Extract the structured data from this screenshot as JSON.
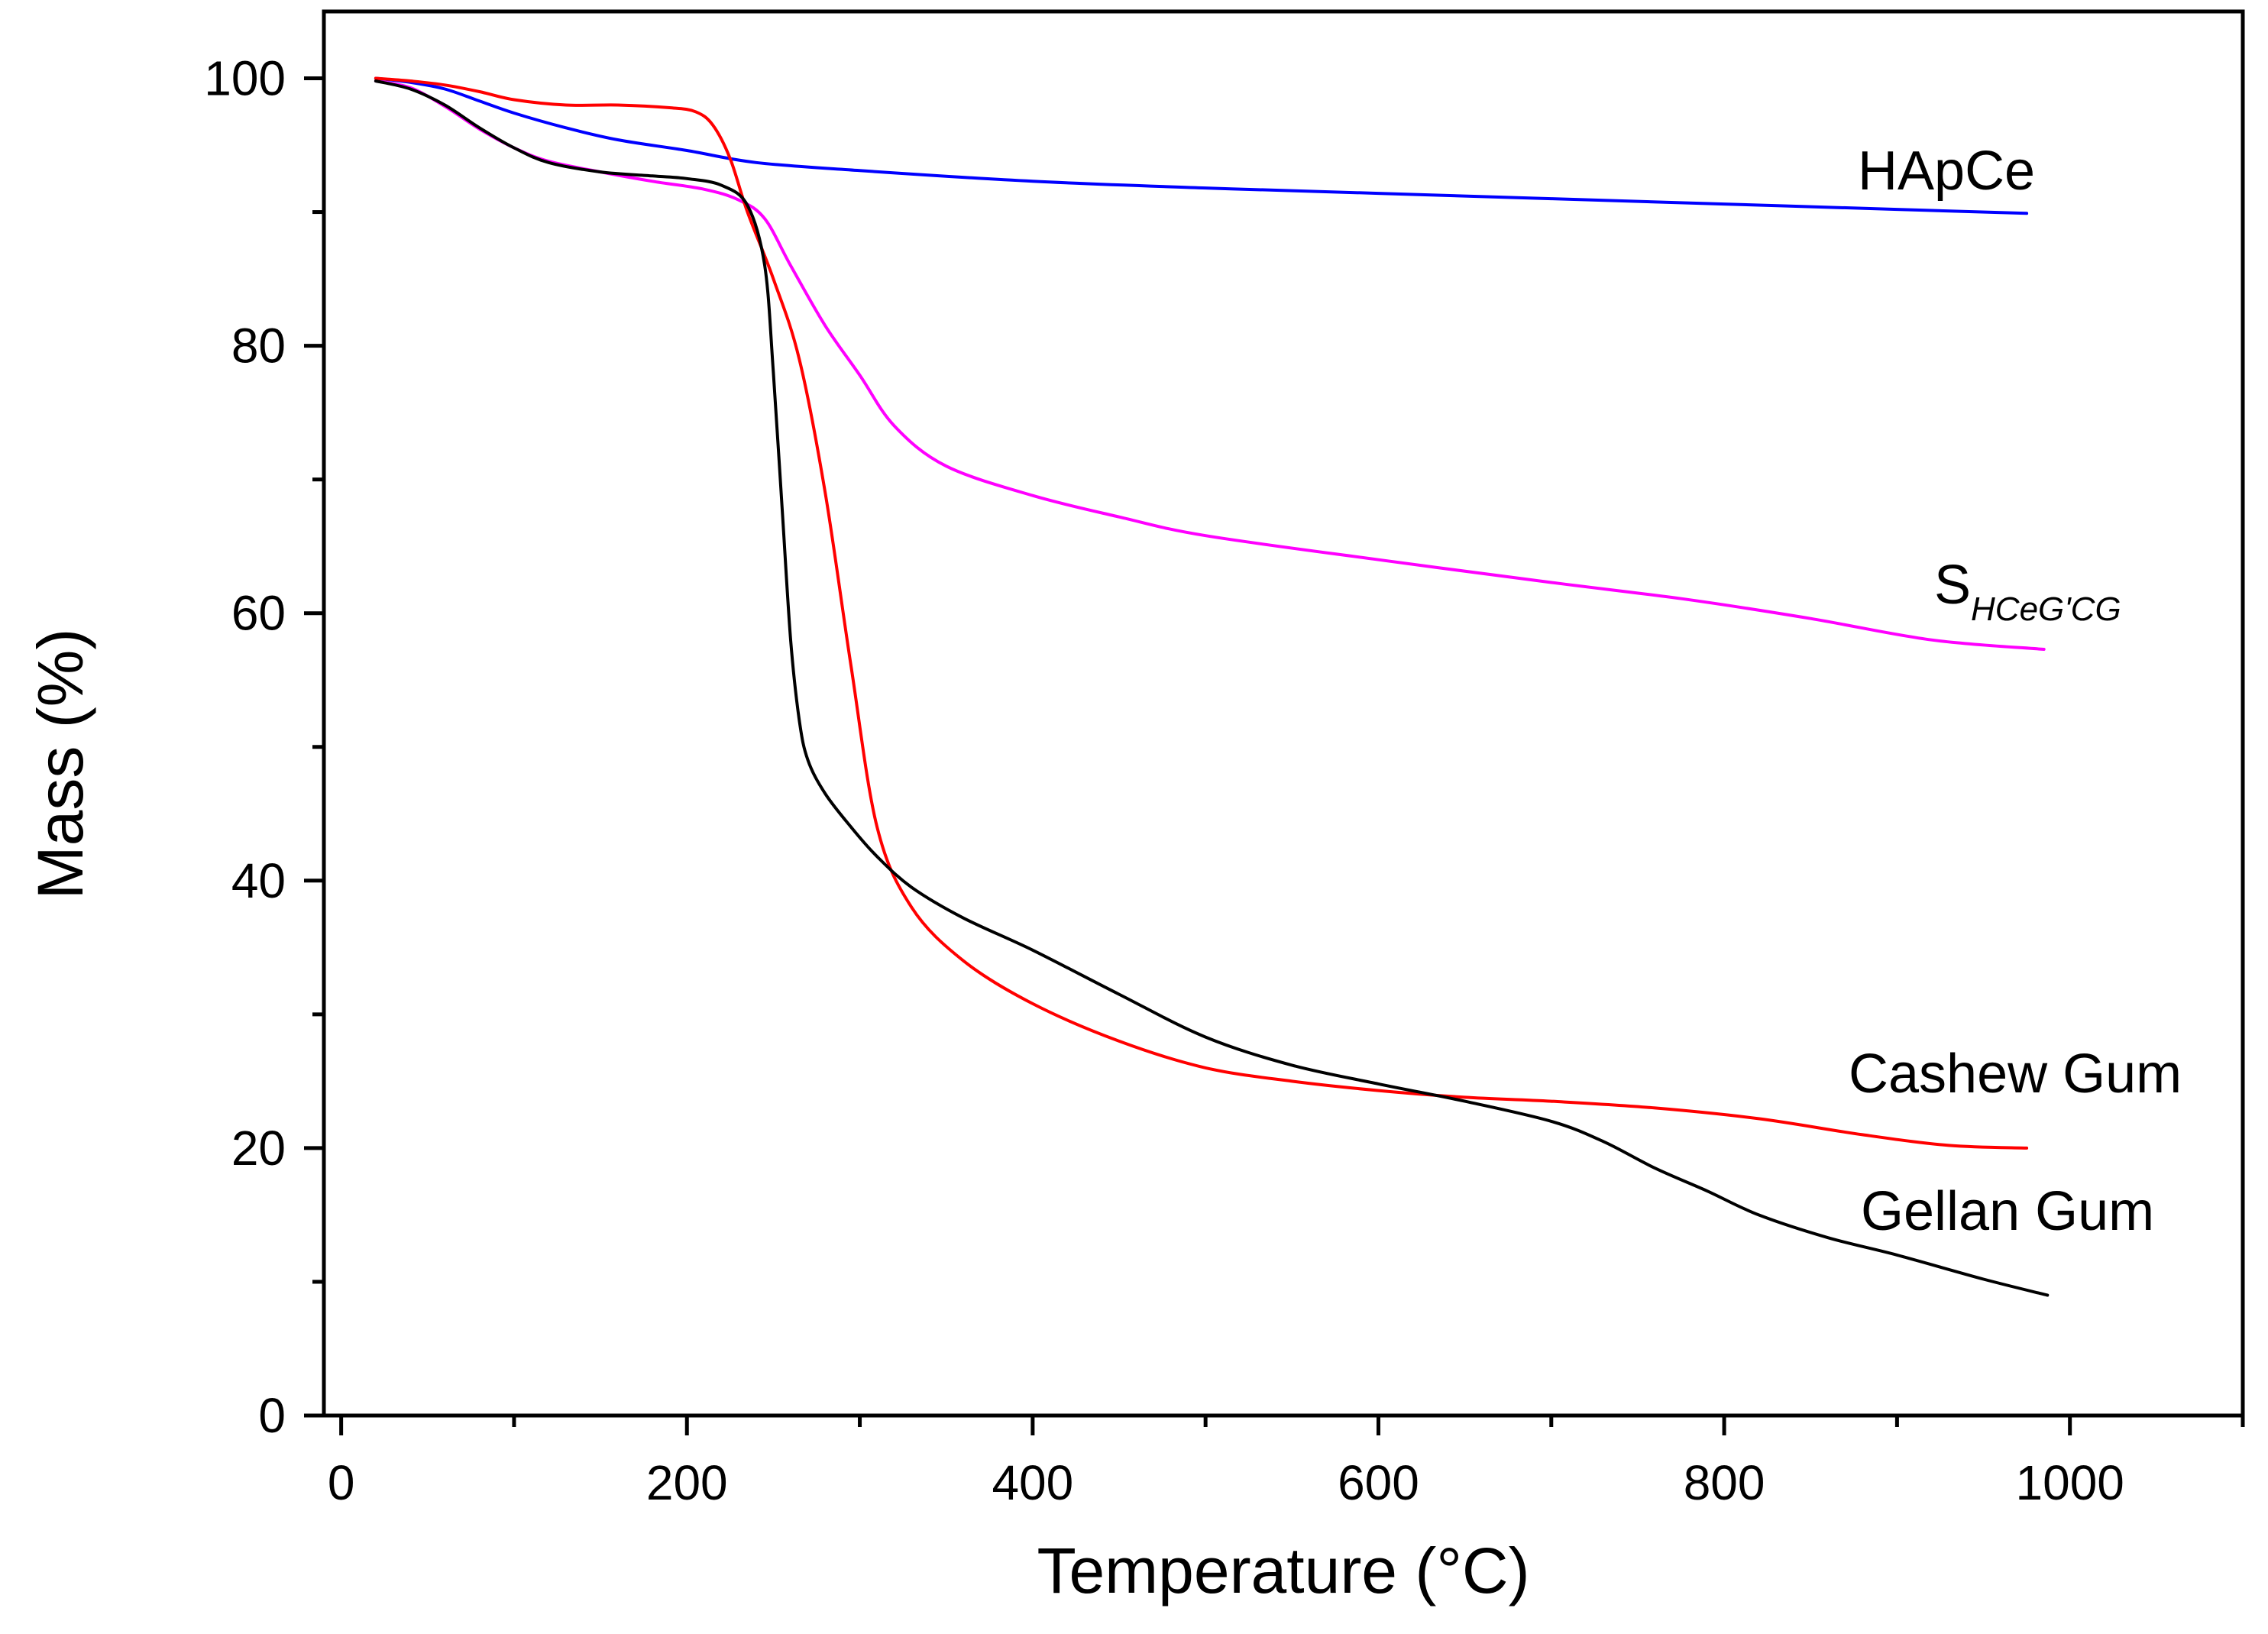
{
  "chart_data": {
    "type": "line",
    "title": "",
    "xlabel": "Temperature (°C)",
    "ylabel": "Mass (%)",
    "xlim": [
      -10,
      1100
    ],
    "ylim": [
      0,
      105
    ],
    "x_ticks": [
      0,
      200,
      400,
      600,
      800,
      1000
    ],
    "x_minor_ticks": [
      100,
      300,
      500,
      700,
      900,
      1100
    ],
    "y_ticks": [
      0,
      20,
      40,
      60,
      80,
      100
    ],
    "y_minor_ticks": [
      10,
      30,
      50,
      70,
      90
    ],
    "grid": false,
    "legend": "inline labels at right end of curves",
    "series": [
      {
        "name": "HApCe",
        "color": "#0000ff",
        "label": "HApCe",
        "x": [
          20,
          40,
          60,
          80,
          100,
          130,
          160,
          200,
          240,
          300,
          400,
          500,
          600,
          700,
          800,
          900,
          975
        ],
        "y": [
          100,
          99.7,
          99.2,
          98.3,
          97.4,
          96.3,
          95.4,
          94.6,
          93.7,
          93.1,
          92.3,
          91.8,
          91.4,
          91.0,
          90.6,
          90.2,
          89.9
        ]
      },
      {
        "name": "SHCeG'CG",
        "color": "#ff00ff",
        "label_main": "S",
        "label_sub": "HCeG'CG",
        "x": [
          20,
          40,
          60,
          80,
          100,
          120,
          150,
          180,
          210,
          230,
          245,
          260,
          280,
          300,
          320,
          350,
          400,
          450,
          500,
          600,
          700,
          780,
          850,
          920,
          985
        ],
        "y": [
          99.8,
          99.3,
          97.9,
          96.2,
          94.8,
          93.8,
          93.0,
          92.3,
          91.7,
          90.9,
          89.5,
          86.0,
          81.5,
          77.8,
          74.0,
          71.0,
          68.8,
          67.2,
          65.8,
          64.0,
          62.3,
          61.0,
          59.6,
          58.0,
          57.3
        ]
      },
      {
        "name": "Cashew Gum",
        "color": "#ff0000",
        "label": "Cashew Gum",
        "x": [
          20,
          40,
          60,
          80,
          100,
          130,
          160,
          190,
          205,
          215,
          225,
          235,
          250,
          265,
          280,
          295,
          310,
          330,
          360,
          400,
          450,
          500,
          550,
          600,
          650,
          700,
          760,
          820,
          880,
          930,
          975
        ],
        "y": [
          100,
          99.8,
          99.5,
          99.0,
          98.4,
          98.0,
          98.0,
          97.8,
          97.5,
          96.5,
          94.0,
          90.0,
          85.0,
          79.0,
          69.0,
          56.0,
          44.0,
          38.0,
          34.0,
          30.8,
          28.0,
          26.0,
          25.0,
          24.3,
          23.8,
          23.5,
          23.0,
          22.2,
          21.0,
          20.2,
          20.0
        ]
      },
      {
        "name": "Gellan Gum",
        "color": "#000000",
        "label": "Gellan Gum",
        "x": [
          20,
          40,
          60,
          80,
          100,
          120,
          150,
          180,
          200,
          220,
          235,
          245,
          250,
          255,
          260,
          265,
          270,
          280,
          295,
          310,
          330,
          360,
          400,
          450,
          500,
          550,
          600,
          650,
          700,
          730,
          760,
          790,
          820,
          860,
          900,
          950,
          987
        ],
        "y": [
          99.8,
          99.2,
          98.0,
          96.3,
          94.8,
          93.7,
          93.0,
          92.7,
          92.5,
          92.0,
          90.5,
          86.0,
          78.0,
          68.0,
          58.0,
          52.0,
          49.0,
          46.5,
          44.0,
          41.8,
          39.5,
          37.2,
          34.8,
          31.5,
          28.3,
          26.2,
          24.8,
          23.5,
          22.0,
          20.5,
          18.5,
          16.8,
          15.0,
          13.3,
          12.0,
          10.2,
          9.0
        ]
      }
    ]
  }
}
